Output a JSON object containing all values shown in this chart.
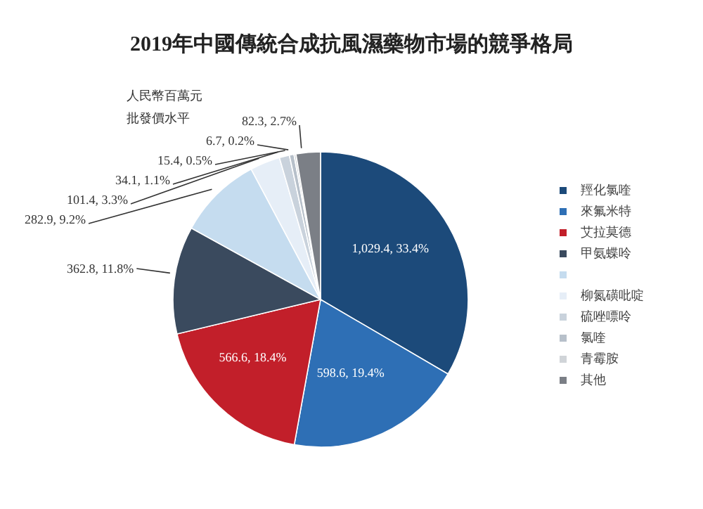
{
  "chart_data": {
    "type": "pie",
    "title": "2019年中國傳統合成抗風濕藥物市場的競爭格局",
    "annotations": [
      "人民幣百萬元",
      "批發價水平"
    ],
    "categories": [
      "羥化氯喹",
      "來氟米特",
      "艾拉莫德",
      "甲氨蝶呤",
      null,
      "柳氮磺吡啶",
      "硫唑嘌呤",
      "氯喹",
      "青霉胺",
      "其他"
    ],
    "values": [
      1029.4,
      598.6,
      566.6,
      362.8,
      282.9,
      101.4,
      34.1,
      15.4,
      6.7,
      82.3
    ],
    "value_labels": [
      "1,029.4, 33.4%",
      "598.6, 19.4%",
      "566.6, 18.4%",
      "362.8, 11.8%",
      "282.9, 9.2%",
      "101.4, 3.3%",
      "34.1, 1.1%",
      "15.4, 0.5%",
      "6.7, 0.2%",
      "82.3, 2.7%"
    ],
    "colors": [
      "#1c4a7a",
      "#2e6fb5",
      "#c21f2a",
      "#3a4a5e",
      "#c5dcef",
      "#e6eef7",
      "#c9d2dc",
      "#b7c0ca",
      "#d0d4d8",
      "#7b7f86"
    ],
    "legend": "right"
  }
}
